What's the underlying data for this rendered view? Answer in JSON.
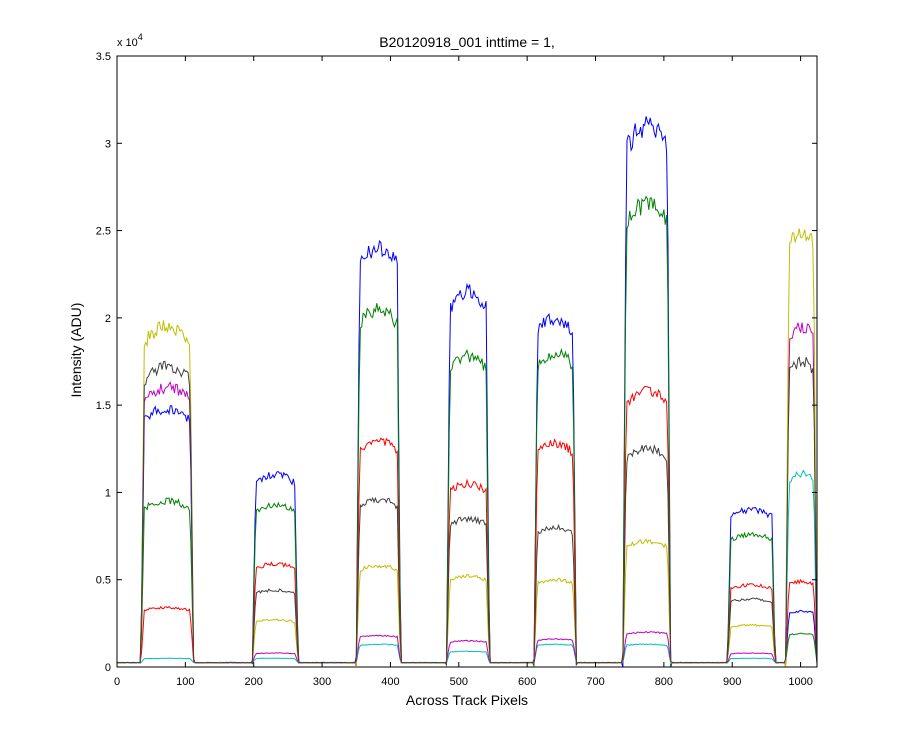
{
  "chart_data": {
    "type": "line",
    "title": "B20120918_001 inttime = 1,",
    "xlabel": "Across Track Pixels",
    "ylabel": "Intensity (ADU)",
    "y_multiplier_label": {
      "base": "x 10",
      "exponent": "4"
    },
    "xlim": [
      0,
      1024
    ],
    "ylim": [
      0,
      35000
    ],
    "xticks": [
      0,
      100,
      200,
      300,
      400,
      500,
      600,
      700,
      800,
      900,
      1000
    ],
    "yticks": [
      0,
      5000,
      10000,
      15000,
      20000,
      25000,
      30000,
      35000
    ],
    "ytick_labels": [
      "0",
      "0.5",
      "1",
      "1.5",
      "2",
      "2.5",
      "3",
      "3.5"
    ],
    "grid": false,
    "legend": "none",
    "baseline": 250,
    "segments": [
      {
        "x_start": 35,
        "x_end": 112
      },
      {
        "x_start": 198,
        "x_end": 265
      },
      {
        "x_start": 350,
        "x_end": 415
      },
      {
        "x_start": 482,
        "x_end": 545
      },
      {
        "x_start": 610,
        "x_end": 672
      },
      {
        "x_start": 740,
        "x_end": 810
      },
      {
        "x_start": 893,
        "x_end": 963
      },
      {
        "x_start": 978,
        "x_end": 1024
      }
    ],
    "series": [
      {
        "color": "#0000ff",
        "values": [
          14800,
          11000,
          24000,
          21500,
          20000,
          31000,
          9000,
          3200
        ]
      },
      {
        "color": "#008000",
        "values": [
          9500,
          9300,
          20500,
          17800,
          18000,
          26500,
          7600,
          1900
        ]
      },
      {
        "color": "#ff0000",
        "values": [
          3400,
          5900,
          13000,
          10500,
          12800,
          15800,
          4700,
          4900
        ]
      },
      {
        "color": "#00bfbf",
        "values": [
          500,
          500,
          1300,
          900,
          1300,
          1300,
          500,
          11100
        ]
      },
      {
        "color": "#bf00bf",
        "values": [
          16000,
          800,
          1800,
          1500,
          1600,
          2000,
          800,
          19500
        ]
      },
      {
        "color": "#bfbf00",
        "values": [
          19500,
          2700,
          5800,
          5200,
          5000,
          7200,
          2400,
          25000
        ]
      },
      {
        "color": "#404040",
        "values": [
          17200,
          4400,
          9600,
          8500,
          8000,
          12500,
          3900,
          17500
        ]
      }
    ]
  }
}
